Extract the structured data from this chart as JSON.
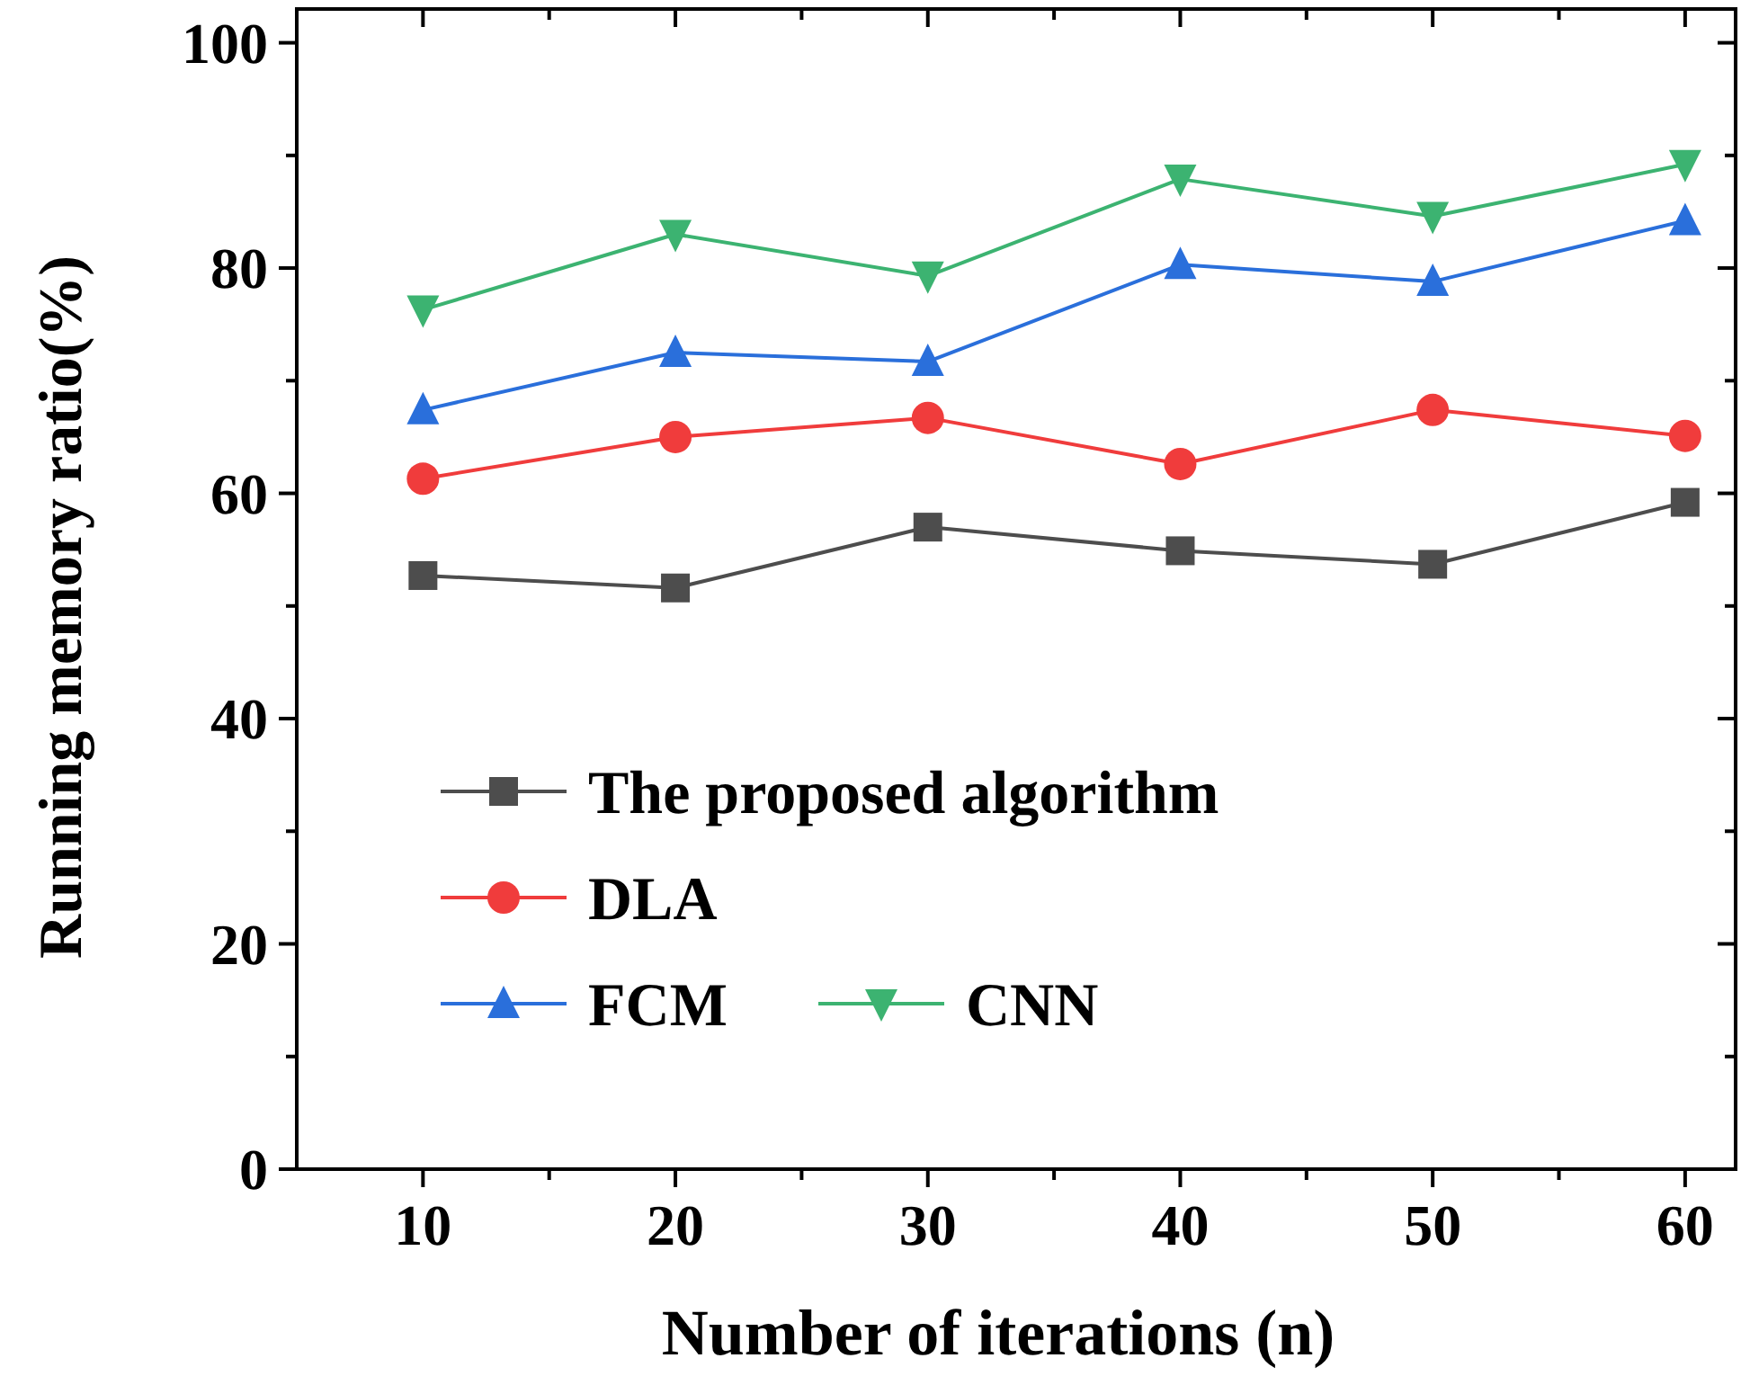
{
  "chart_data": {
    "type": "line",
    "xlabel": "Number of iterations (n)",
    "ylabel": "Running memory ratio(%)",
    "x": [
      10,
      20,
      30,
      40,
      50,
      60
    ],
    "xlim": [
      5,
      62
    ],
    "xticks": [
      10,
      {
        "value": 15,
        "label": null
      },
      20,
      {
        "value": 25,
        "label": null
      },
      30,
      {
        "value": 35,
        "label": null
      },
      40,
      {
        "value": 45,
        "label": null
      },
      50,
      {
        "value": 55,
        "label": null
      },
      60
    ],
    "ylim": [
      0,
      103
    ],
    "yticks": [
      0,
      {
        "value": 10,
        "label": null
      },
      20,
      {
        "value": 30,
        "label": null
      },
      40,
      {
        "value": 50,
        "label": null
      },
      60,
      {
        "value": 70,
        "label": null
      },
      80,
      {
        "value": 90,
        "label": null
      },
      100
    ],
    "grid": false,
    "legend": "left",
    "line_style": "solid",
    "series": [
      {
        "name": "The proposed algorithm",
        "color": "#4d4d4d",
        "marker": "square",
        "values": [
          52.7,
          51.6,
          57.0,
          54.9,
          53.7,
          59.2
        ]
      },
      {
        "name": "DLA",
        "color": "#f03c3c",
        "marker": "circle",
        "values": [
          61.3,
          65.0,
          66.7,
          62.6,
          67.4,
          65.1
        ]
      },
      {
        "name": "FCM",
        "color": "#2a6fdb",
        "marker": "triangle",
        "values": [
          67.4,
          72.5,
          71.7,
          80.3,
          78.8,
          84.2
        ]
      },
      {
        "name": "CNN",
        "color": "#3cb371",
        "marker": "triangle-down",
        "values": [
          76.3,
          83.0,
          79.3,
          87.9,
          84.6,
          89.2
        ]
      }
    ]
  }
}
